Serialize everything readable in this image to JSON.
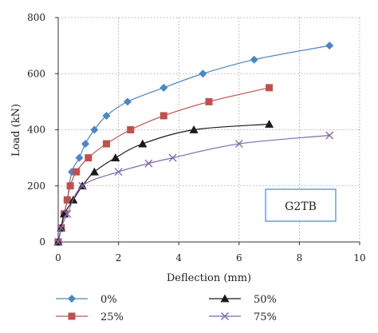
{
  "chart_data": {
    "type": "scatter",
    "title": "",
    "xlabel": "Deflection (mm)",
    "ylabel": "Load (kN)",
    "xlim": [
      0,
      10
    ],
    "ylim": [
      0,
      800
    ],
    "x_ticks": [
      "0",
      "2",
      "4",
      "6",
      "8",
      "10"
    ],
    "y_ticks": [
      "0",
      "200",
      "400",
      "600",
      "800"
    ],
    "grid": "dotted",
    "legend_position": "bottom",
    "annotation": "G2TB",
    "series": [
      {
        "name": "0%",
        "color": "#4A86C8",
        "marker": "diamond",
        "points": [
          [
            0,
            0
          ],
          [
            0.1,
            50
          ],
          [
            0.2,
            100
          ],
          [
            0.3,
            150
          ],
          [
            0.45,
            250
          ],
          [
            0.7,
            300
          ],
          [
            0.9,
            350
          ],
          [
            1.2,
            400
          ],
          [
            1.6,
            450
          ],
          [
            2.3,
            500
          ],
          [
            3.5,
            550
          ],
          [
            4.8,
            600
          ],
          [
            6.5,
            650
          ],
          [
            9.0,
            700
          ]
        ]
      },
      {
        "name": "25%",
        "color": "#C0504D",
        "marker": "square",
        "points": [
          [
            0,
            0
          ],
          [
            0.1,
            50
          ],
          [
            0.2,
            100
          ],
          [
            0.3,
            150
          ],
          [
            0.4,
            200
          ],
          [
            0.6,
            250
          ],
          [
            1.0,
            300
          ],
          [
            1.6,
            350
          ],
          [
            2.4,
            400
          ],
          [
            3.5,
            450
          ],
          [
            5.0,
            500
          ],
          [
            7.0,
            550
          ]
        ]
      },
      {
        "name": "50%",
        "color": "#1A1A1A",
        "marker": "triangle",
        "points": [
          [
            0,
            0
          ],
          [
            0.1,
            50
          ],
          [
            0.2,
            100
          ],
          [
            0.5,
            150
          ],
          [
            0.8,
            200
          ],
          [
            1.2,
            250
          ],
          [
            1.9,
            300
          ],
          [
            2.8,
            350
          ],
          [
            4.5,
            400
          ],
          [
            7.0,
            420
          ]
        ]
      },
      {
        "name": "75%",
        "color": "#7F6AB0",
        "marker": "x",
        "points": [
          [
            0,
            0
          ],
          [
            0.1,
            50
          ],
          [
            0.3,
            100
          ],
          [
            0.8,
            200
          ],
          [
            2.0,
            250
          ],
          [
            3.0,
            280
          ],
          [
            3.8,
            300
          ],
          [
            6.0,
            350
          ],
          [
            9.0,
            380
          ]
        ]
      }
    ]
  }
}
